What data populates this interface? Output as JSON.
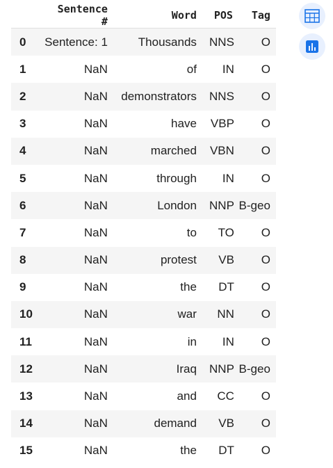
{
  "table": {
    "headers": {
      "index": "",
      "sentence": "Sentence #",
      "word": "Word",
      "pos": "POS",
      "tag": "Tag"
    },
    "rows": [
      {
        "index": "0",
        "sentence": "Sentence: 1",
        "word": "Thousands",
        "pos": "NNS",
        "tag": "O"
      },
      {
        "index": "1",
        "sentence": "NaN",
        "word": "of",
        "pos": "IN",
        "tag": "O"
      },
      {
        "index": "2",
        "sentence": "NaN",
        "word": "demonstrators",
        "pos": "NNS",
        "tag": "O"
      },
      {
        "index": "3",
        "sentence": "NaN",
        "word": "have",
        "pos": "VBP",
        "tag": "O"
      },
      {
        "index": "4",
        "sentence": "NaN",
        "word": "marched",
        "pos": "VBN",
        "tag": "O"
      },
      {
        "index": "5",
        "sentence": "NaN",
        "word": "through",
        "pos": "IN",
        "tag": "O"
      },
      {
        "index": "6",
        "sentence": "NaN",
        "word": "London",
        "pos": "NNP",
        "tag": "B-geo"
      },
      {
        "index": "7",
        "sentence": "NaN",
        "word": "to",
        "pos": "TO",
        "tag": "O"
      },
      {
        "index": "8",
        "sentence": "NaN",
        "word": "protest",
        "pos": "VB",
        "tag": "O"
      },
      {
        "index": "9",
        "sentence": "NaN",
        "word": "the",
        "pos": "DT",
        "tag": "O"
      },
      {
        "index": "10",
        "sentence": "NaN",
        "word": "war",
        "pos": "NN",
        "tag": "O"
      },
      {
        "index": "11",
        "sentence": "NaN",
        "word": "in",
        "pos": "IN",
        "tag": "O"
      },
      {
        "index": "12",
        "sentence": "NaN",
        "word": "Iraq",
        "pos": "NNP",
        "tag": "B-geo"
      },
      {
        "index": "13",
        "sentence": "NaN",
        "word": "and",
        "pos": "CC",
        "tag": "O"
      },
      {
        "index": "14",
        "sentence": "NaN",
        "word": "demand",
        "pos": "VB",
        "tag": "O"
      },
      {
        "index": "15",
        "sentence": "NaN",
        "word": "the",
        "pos": "DT",
        "tag": "O"
      }
    ]
  },
  "actions": {
    "table_view_icon": "table-grid-icon",
    "chart_suggest_icon": "bar-chart-icon"
  },
  "colors": {
    "accent": "#1a73e8",
    "button_bg": "#e8f0fe",
    "row_stripe": "#f5f5f5"
  }
}
